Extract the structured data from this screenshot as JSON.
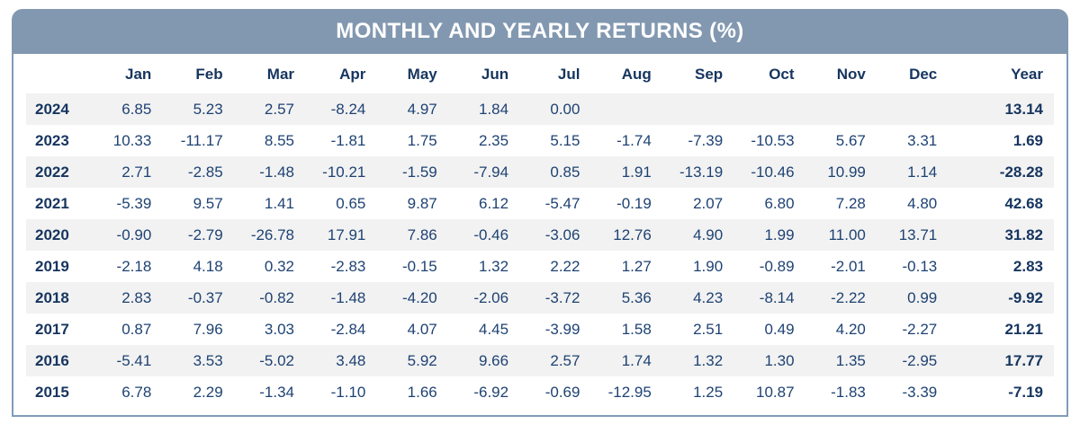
{
  "title": "MONTHLY AND YEARLY RETURNS (%)",
  "colors": {
    "header_bg": "#8298b0",
    "title_text": "#ffffff",
    "border": "#7f9cba",
    "navy": "#1e4273",
    "navy_bold": "#16355f",
    "stripe": "#f2f2f2"
  },
  "table": {
    "columns": [
      "",
      "Jan",
      "Feb",
      "Mar",
      "Apr",
      "May",
      "Jun",
      "Jul",
      "Aug",
      "Sep",
      "Oct",
      "Nov",
      "Dec",
      "Year"
    ],
    "rows": [
      {
        "year": "2024",
        "values": [
          "6.85",
          "5.23",
          "2.57",
          "-8.24",
          "4.97",
          "1.84",
          "0.00",
          "",
          "",
          "",
          "",
          ""
        ],
        "total": "13.14"
      },
      {
        "year": "2023",
        "values": [
          "10.33",
          "-11.17",
          "8.55",
          "-1.81",
          "1.75",
          "2.35",
          "5.15",
          "-1.74",
          "-7.39",
          "-10.53",
          "5.67",
          "3.31"
        ],
        "total": "1.69"
      },
      {
        "year": "2022",
        "values": [
          "2.71",
          "-2.85",
          "-1.48",
          "-10.21",
          "-1.59",
          "-7.94",
          "0.85",
          "1.91",
          "-13.19",
          "-10.46",
          "10.99",
          "1.14"
        ],
        "total": "-28.28"
      },
      {
        "year": "2021",
        "values": [
          "-5.39",
          "9.57",
          "1.41",
          "0.65",
          "9.87",
          "6.12",
          "-5.47",
          "-0.19",
          "2.07",
          "6.80",
          "7.28",
          "4.80"
        ],
        "total": "42.68"
      },
      {
        "year": "2020",
        "values": [
          "-0.90",
          "-2.79",
          "-26.78",
          "17.91",
          "7.86",
          "-0.46",
          "-3.06",
          "12.76",
          "4.90",
          "1.99",
          "11.00",
          "13.71"
        ],
        "total": "31.82"
      },
      {
        "year": "2019",
        "values": [
          "-2.18",
          "4.18",
          "0.32",
          "-2.83",
          "-0.15",
          "1.32",
          "2.22",
          "1.27",
          "1.90",
          "-0.89",
          "-2.01",
          "-0.13"
        ],
        "total": "2.83"
      },
      {
        "year": "2018",
        "values": [
          "2.83",
          "-0.37",
          "-0.82",
          "-1.48",
          "-4.20",
          "-2.06",
          "-3.72",
          "5.36",
          "4.23",
          "-8.14",
          "-2.22",
          "0.99"
        ],
        "total": "-9.92"
      },
      {
        "year": "2017",
        "values": [
          "0.87",
          "7.96",
          "3.03",
          "-2.84",
          "4.07",
          "4.45",
          "-3.99",
          "1.58",
          "2.51",
          "0.49",
          "4.20",
          "-2.27"
        ],
        "total": "21.21"
      },
      {
        "year": "2016",
        "values": [
          "-5.41",
          "3.53",
          "-5.02",
          "3.48",
          "5.92",
          "9.66",
          "2.57",
          "1.74",
          "1.32",
          "1.30",
          "1.35",
          "-2.95"
        ],
        "total": "17.77"
      },
      {
        "year": "2015",
        "values": [
          "6.78",
          "2.29",
          "-1.34",
          "-1.10",
          "1.66",
          "-6.92",
          "-0.69",
          "-12.95",
          "1.25",
          "10.87",
          "-1.83",
          "-3.39"
        ],
        "total": "-7.19"
      }
    ]
  },
  "chart_data": {
    "type": "table",
    "title": "MONTHLY AND YEARLY RETURNS (%)",
    "columns": [
      "Jan",
      "Feb",
      "Mar",
      "Apr",
      "May",
      "Jun",
      "Jul",
      "Aug",
      "Sep",
      "Oct",
      "Nov",
      "Dec",
      "Year"
    ],
    "rows": [
      {
        "year": 2024,
        "monthly": [
          6.85,
          5.23,
          2.57,
          -8.24,
          4.97,
          1.84,
          0.0,
          null,
          null,
          null,
          null,
          null
        ],
        "yearly": 13.14
      },
      {
        "year": 2023,
        "monthly": [
          10.33,
          -11.17,
          8.55,
          -1.81,
          1.75,
          2.35,
          5.15,
          -1.74,
          -7.39,
          -10.53,
          5.67,
          3.31
        ],
        "yearly": 1.69
      },
      {
        "year": 2022,
        "monthly": [
          2.71,
          -2.85,
          -1.48,
          -10.21,
          -1.59,
          -7.94,
          0.85,
          1.91,
          -13.19,
          -10.46,
          10.99,
          1.14
        ],
        "yearly": -28.28
      },
      {
        "year": 2021,
        "monthly": [
          -5.39,
          9.57,
          1.41,
          0.65,
          9.87,
          6.12,
          -5.47,
          -0.19,
          2.07,
          6.8,
          7.28,
          4.8
        ],
        "yearly": 42.68
      },
      {
        "year": 2020,
        "monthly": [
          -0.9,
          -2.79,
          -26.78,
          17.91,
          7.86,
          -0.46,
          -3.06,
          12.76,
          4.9,
          1.99,
          11.0,
          13.71
        ],
        "yearly": 31.82
      },
      {
        "year": 2019,
        "monthly": [
          -2.18,
          4.18,
          0.32,
          -2.83,
          -0.15,
          1.32,
          2.22,
          1.27,
          1.9,
          -0.89,
          -2.01,
          -0.13
        ],
        "yearly": 2.83
      },
      {
        "year": 2018,
        "monthly": [
          2.83,
          -0.37,
          -0.82,
          -1.48,
          -4.2,
          -2.06,
          -3.72,
          5.36,
          4.23,
          -8.14,
          -2.22,
          0.99
        ],
        "yearly": -9.92
      },
      {
        "year": 2017,
        "monthly": [
          0.87,
          7.96,
          3.03,
          -2.84,
          4.07,
          4.45,
          -3.99,
          1.58,
          2.51,
          0.49,
          4.2,
          -2.27
        ],
        "yearly": 21.21
      },
      {
        "year": 2016,
        "monthly": [
          -5.41,
          3.53,
          -5.02,
          3.48,
          5.92,
          9.66,
          2.57,
          1.74,
          1.32,
          1.3,
          1.35,
          -2.95
        ],
        "yearly": 17.77
      },
      {
        "year": 2015,
        "monthly": [
          6.78,
          2.29,
          -1.34,
          -1.1,
          1.66,
          -6.92,
          -0.69,
          -12.95,
          1.25,
          10.87,
          -1.83,
          -3.39
        ],
        "yearly": -7.19
      }
    ]
  }
}
